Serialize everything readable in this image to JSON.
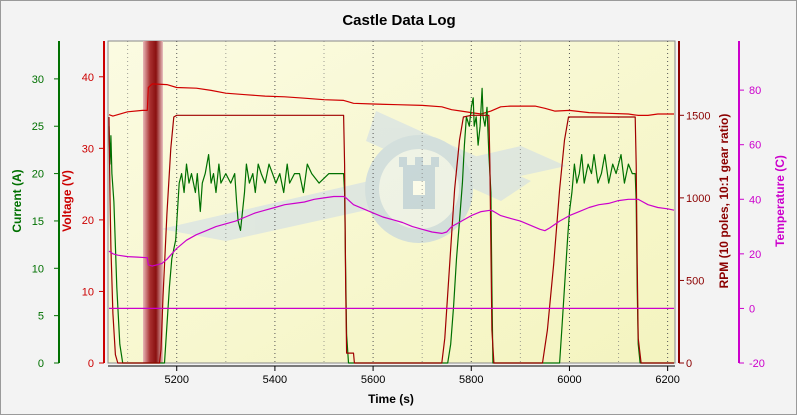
{
  "chart_data": {
    "type": "line",
    "title": "Castle Data Log",
    "xlabel": "Time (s)",
    "xlim": [
      5060,
      6215
    ],
    "xticks": [
      5200,
      5400,
      5600,
      5800,
      6000,
      6200
    ],
    "grid": true,
    "axes": {
      "current": {
        "label": "Current (A)",
        "color": "#007000",
        "lim": [
          0,
          34
        ],
        "ticks": [
          0,
          5,
          10,
          15,
          20,
          25,
          30
        ],
        "side": "left-outer"
      },
      "voltage": {
        "label": "Voltage (V)",
        "color": "#cc0000",
        "lim": [
          0,
          45
        ],
        "ticks": [
          0,
          10,
          20,
          30,
          40
        ],
        "side": "left-inner"
      },
      "rpm": {
        "label": "RPM (10 poles, 10:1 gear ratio)",
        "color": "#8b0000",
        "lim": [
          0,
          1950
        ],
        "ticks": [
          0,
          500,
          1000,
          1500
        ],
        "side": "right-inner"
      },
      "temperature": {
        "label": "Temperature (C)",
        "color": "#cc00cc",
        "lim": [
          -20,
          98
        ],
        "ticks": [
          -20,
          0,
          20,
          40,
          60,
          80
        ],
        "side": "right-outer"
      }
    },
    "series": [
      {
        "axis": "voltage",
        "color": "#d00000",
        "points": [
          [
            5062,
            34.7
          ],
          [
            5070,
            34.5
          ],
          [
            5100,
            35.1
          ],
          [
            5130,
            35.3
          ],
          [
            5140,
            35.3
          ],
          [
            5142,
            38.5
          ],
          [
            5150,
            39.0
          ],
          [
            5180,
            38.9
          ],
          [
            5200,
            38.5
          ],
          [
            5240,
            38.4
          ],
          [
            5270,
            38.1
          ],
          [
            5300,
            37.7
          ],
          [
            5340,
            37.5
          ],
          [
            5380,
            37.3
          ],
          [
            5420,
            37.2
          ],
          [
            5460,
            37.0
          ],
          [
            5500,
            36.8
          ],
          [
            5540,
            36.7
          ],
          [
            5550,
            36.5
          ],
          [
            5560,
            36.3
          ],
          [
            5600,
            36.2
          ],
          [
            5650,
            36.1
          ],
          [
            5700,
            36.0
          ],
          [
            5740,
            35.8
          ],
          [
            5760,
            35.4
          ],
          [
            5780,
            35.2
          ],
          [
            5800,
            35.0
          ],
          [
            5820,
            34.8
          ],
          [
            5840,
            35.2
          ],
          [
            5860,
            35.8
          ],
          [
            5880,
            35.9
          ],
          [
            5930,
            35.9
          ],
          [
            5950,
            35.6
          ],
          [
            5970,
            35.2
          ],
          [
            6000,
            35.3
          ],
          [
            6040,
            35.0
          ],
          [
            6080,
            34.9
          ],
          [
            6120,
            34.8
          ],
          [
            6140,
            34.6
          ],
          [
            6160,
            34.6
          ],
          [
            6180,
            34.8
          ],
          [
            6213,
            34.8
          ]
        ]
      },
      {
        "axis": "current",
        "color": "#007000",
        "points": [
          [
            5062,
            25
          ],
          [
            5064,
            21
          ],
          [
            5066,
            24
          ],
          [
            5068,
            20
          ],
          [
            5072,
            17
          ],
          [
            5078,
            8
          ],
          [
            5084,
            2
          ],
          [
            5090,
            0
          ],
          [
            5175,
            0
          ],
          [
            5185,
            8
          ],
          [
            5190,
            11
          ],
          [
            5198,
            13
          ],
          [
            5205,
            19
          ],
          [
            5210,
            20
          ],
          [
            5215,
            18
          ],
          [
            5220,
            21
          ],
          [
            5225,
            19
          ],
          [
            5230,
            20
          ],
          [
            5238,
            18
          ],
          [
            5242,
            20
          ],
          [
            5248,
            16
          ],
          [
            5252,
            19
          ],
          [
            5258,
            20
          ],
          [
            5265,
            22
          ],
          [
            5270,
            19
          ],
          [
            5275,
            20
          ],
          [
            5280,
            18
          ],
          [
            5286,
            21
          ],
          [
            5290,
            19
          ],
          [
            5300,
            20
          ],
          [
            5310,
            19
          ],
          [
            5318,
            20
          ],
          [
            5322,
            17
          ],
          [
            5325,
            15
          ],
          [
            5330,
            14
          ],
          [
            5334,
            16
          ],
          [
            5338,
            18
          ],
          [
            5342,
            21
          ],
          [
            5348,
            19
          ],
          [
            5355,
            20
          ],
          [
            5360,
            18
          ],
          [
            5366,
            21
          ],
          [
            5372,
            20
          ],
          [
            5380,
            19
          ],
          [
            5388,
            21
          ],
          [
            5395,
            20
          ],
          [
            5402,
            19
          ],
          [
            5410,
            20
          ],
          [
            5418,
            18
          ],
          [
            5425,
            21
          ],
          [
            5430,
            19
          ],
          [
            5440,
            20
          ],
          [
            5450,
            20
          ],
          [
            5458,
            18
          ],
          [
            5466,
            21
          ],
          [
            5475,
            20
          ],
          [
            5490,
            19
          ],
          [
            5510,
            20
          ],
          [
            5530,
            20
          ],
          [
            5540,
            20
          ],
          [
            5542,
            18
          ],
          [
            5544,
            10
          ],
          [
            5546,
            3
          ],
          [
            5550,
            0
          ],
          [
            5752,
            0
          ],
          [
            5758,
            2
          ],
          [
            5764,
            6
          ],
          [
            5770,
            11
          ],
          [
            5776,
            15
          ],
          [
            5782,
            19
          ],
          [
            5786,
            23
          ],
          [
            5790,
            26
          ],
          [
            5796,
            25
          ],
          [
            5800,
            27
          ],
          [
            5804,
            28
          ],
          [
            5806,
            25
          ],
          [
            5810,
            26
          ],
          [
            5814,
            23
          ],
          [
            5818,
            25
          ],
          [
            5822,
            29
          ],
          [
            5824,
            26
          ],
          [
            5828,
            25
          ],
          [
            5832,
            27
          ],
          [
            5836,
            22
          ],
          [
            5840,
            18
          ],
          [
            5842,
            8
          ],
          [
            5844,
            0
          ],
          [
            5980,
            0
          ],
          [
            5985,
            4
          ],
          [
            5990,
            8
          ],
          [
            5996,
            13
          ],
          [
            6000,
            16
          ],
          [
            6005,
            18
          ],
          [
            6010,
            21
          ],
          [
            6015,
            19
          ],
          [
            6020,
            20
          ],
          [
            6025,
            22
          ],
          [
            6030,
            19
          ],
          [
            6038,
            21
          ],
          [
            6045,
            20
          ],
          [
            6050,
            22
          ],
          [
            6058,
            19
          ],
          [
            6065,
            20
          ],
          [
            6072,
            22
          ],
          [
            6080,
            19
          ],
          [
            6088,
            21
          ],
          [
            6095,
            20
          ],
          [
            6105,
            22
          ],
          [
            6112,
            19
          ],
          [
            6120,
            21
          ],
          [
            6128,
            20
          ],
          [
            6134,
            20
          ],
          [
            6136,
            17
          ],
          [
            6138,
            8
          ],
          [
            6140,
            2
          ],
          [
            6144,
            0
          ],
          [
            6213,
            0
          ]
        ]
      },
      {
        "axis": "rpm",
        "color": "#a00000",
        "points": [
          [
            5062,
            1490
          ],
          [
            5064,
            1000
          ],
          [
            5066,
            700
          ],
          [
            5070,
            300
          ],
          [
            5075,
            50
          ],
          [
            5080,
            0
          ],
          [
            5165,
            0
          ],
          [
            5168,
            80
          ],
          [
            5172,
            400
          ],
          [
            5180,
            900
          ],
          [
            5188,
            1300
          ],
          [
            5194,
            1490
          ],
          [
            5200,
            1500
          ],
          [
            5300,
            1500
          ],
          [
            5400,
            1500
          ],
          [
            5520,
            1500
          ],
          [
            5540,
            1500
          ],
          [
            5542,
            1200
          ],
          [
            5544,
            500
          ],
          [
            5546,
            60
          ],
          [
            5560,
            60
          ],
          [
            5562,
            0
          ],
          [
            5740,
            0
          ],
          [
            5746,
            150
          ],
          [
            5756,
            600
          ],
          [
            5766,
            1050
          ],
          [
            5776,
            1350
          ],
          [
            5784,
            1490
          ],
          [
            5800,
            1500
          ],
          [
            5836,
            1500
          ],
          [
            5838,
            1200
          ],
          [
            5840,
            700
          ],
          [
            5842,
            200
          ],
          [
            5846,
            0
          ],
          [
            5945,
            0
          ],
          [
            5955,
            200
          ],
          [
            5968,
            600
          ],
          [
            5980,
            1050
          ],
          [
            5990,
            1350
          ],
          [
            5998,
            1490
          ],
          [
            6010,
            1490
          ],
          [
            6130,
            1490
          ],
          [
            6134,
            1490
          ],
          [
            6136,
            1200
          ],
          [
            6138,
            600
          ],
          [
            6140,
            150
          ],
          [
            6146,
            0
          ],
          [
            6213,
            0
          ]
        ]
      },
      {
        "axis": "temperature",
        "color": "#cc00cc",
        "points": [
          [
            5062,
            21
          ],
          [
            5070,
            20
          ],
          [
            5080,
            19.5
          ],
          [
            5100,
            19
          ],
          [
            5120,
            18.8
          ],
          [
            5140,
            18.6
          ],
          [
            5142,
            16
          ],
          [
            5150,
            15.5
          ],
          [
            5160,
            16
          ],
          [
            5170,
            16.5
          ],
          [
            5180,
            18
          ],
          [
            5190,
            20
          ],
          [
            5200,
            22
          ],
          [
            5220,
            25
          ],
          [
            5240,
            27
          ],
          [
            5260,
            28.5
          ],
          [
            5280,
            30
          ],
          [
            5300,
            31
          ],
          [
            5320,
            32
          ],
          [
            5340,
            33.5
          ],
          [
            5360,
            35
          ],
          [
            5380,
            36
          ],
          [
            5400,
            37
          ],
          [
            5420,
            38
          ],
          [
            5440,
            38.5
          ],
          [
            5460,
            39
          ],
          [
            5480,
            40
          ],
          [
            5500,
            40.5
          ],
          [
            5520,
            41
          ],
          [
            5540,
            41
          ],
          [
            5545,
            40.5
          ],
          [
            5560,
            38
          ],
          [
            5580,
            36.5
          ],
          [
            5600,
            35
          ],
          [
            5620,
            33.5
          ],
          [
            5640,
            32.5
          ],
          [
            5660,
            31.5
          ],
          [
            5680,
            30
          ],
          [
            5700,
            29
          ],
          [
            5720,
            28
          ],
          [
            5740,
            27.5
          ],
          [
            5750,
            28
          ],
          [
            5760,
            30
          ],
          [
            5780,
            32
          ],
          [
            5800,
            34
          ],
          [
            5820,
            35.5
          ],
          [
            5840,
            36
          ],
          [
            5846,
            35.5
          ],
          [
            5860,
            34
          ],
          [
            5880,
            33
          ],
          [
            5900,
            32
          ],
          [
            5920,
            30.5
          ],
          [
            5940,
            29
          ],
          [
            5950,
            28.5
          ],
          [
            5960,
            29.5
          ],
          [
            5980,
            32
          ],
          [
            6000,
            34
          ],
          [
            6020,
            35.5
          ],
          [
            6040,
            37
          ],
          [
            6060,
            38
          ],
          [
            6080,
            38.5
          ],
          [
            6100,
            39.5
          ],
          [
            6120,
            40
          ],
          [
            6140,
            40
          ],
          [
            6145,
            39.5
          ],
          [
            6160,
            38
          ],
          [
            6180,
            37
          ],
          [
            6200,
            36.5
          ],
          [
            6213,
            36
          ]
        ]
      },
      {
        "axis": "temperature",
        "color": "#cc00cc",
        "points": [
          [
            5062,
            0
          ],
          [
            6213,
            0
          ]
        ]
      }
    ]
  }
}
